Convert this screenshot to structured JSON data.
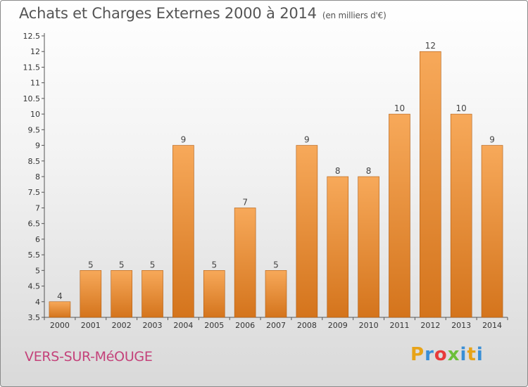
{
  "header": {
    "title": "Achats et Charges Externes 2000 à 2014",
    "unit": "(en milliers d'€)"
  },
  "footer": {
    "city": "VERS-SUR-MéOUGE",
    "logo_letters": [
      "P",
      "r",
      "o",
      "x",
      "i",
      "t",
      "i"
    ],
    "logo_colors": [
      "#e8a317",
      "#3a8fd6",
      "#e83a3a",
      "#6cbf3a",
      "#3a8fd6",
      "#e8a317",
      "#3a8fd6"
    ]
  },
  "chart_data": {
    "type": "bar",
    "title": "Achats et Charges Externes 2000 à 2014",
    "subtitle": "(en milliers d'€)",
    "xlabel": "",
    "ylabel": "",
    "categories": [
      "2000",
      "2001",
      "2002",
      "2003",
      "2004",
      "2005",
      "2006",
      "2007",
      "2008",
      "2009",
      "2010",
      "2011",
      "2012",
      "2013",
      "2014"
    ],
    "values": [
      4,
      5,
      5,
      5,
      9,
      5,
      7,
      5,
      9,
      8,
      8,
      10,
      12,
      10,
      9
    ],
    "data_labels": [
      "4",
      "5",
      "5",
      "5",
      "9",
      "5",
      "7",
      "5",
      "9",
      "8",
      "8",
      "10",
      "12",
      "10",
      "9"
    ],
    "ylim": [
      3.5,
      12.5
    ],
    "yticks": [
      "3.5",
      "4",
      "4.5",
      "5",
      "5.5",
      "6",
      "6.5",
      "7",
      "7.5",
      "8",
      "8.5",
      "9",
      "9.5",
      "10",
      "10.5",
      "11",
      "11.5",
      "12",
      "12.5"
    ],
    "grid": false,
    "colors": {
      "bar_top": "#f7a95a",
      "bar_bottom": "#d4741c",
      "bar_border": "#b05c12"
    }
  }
}
